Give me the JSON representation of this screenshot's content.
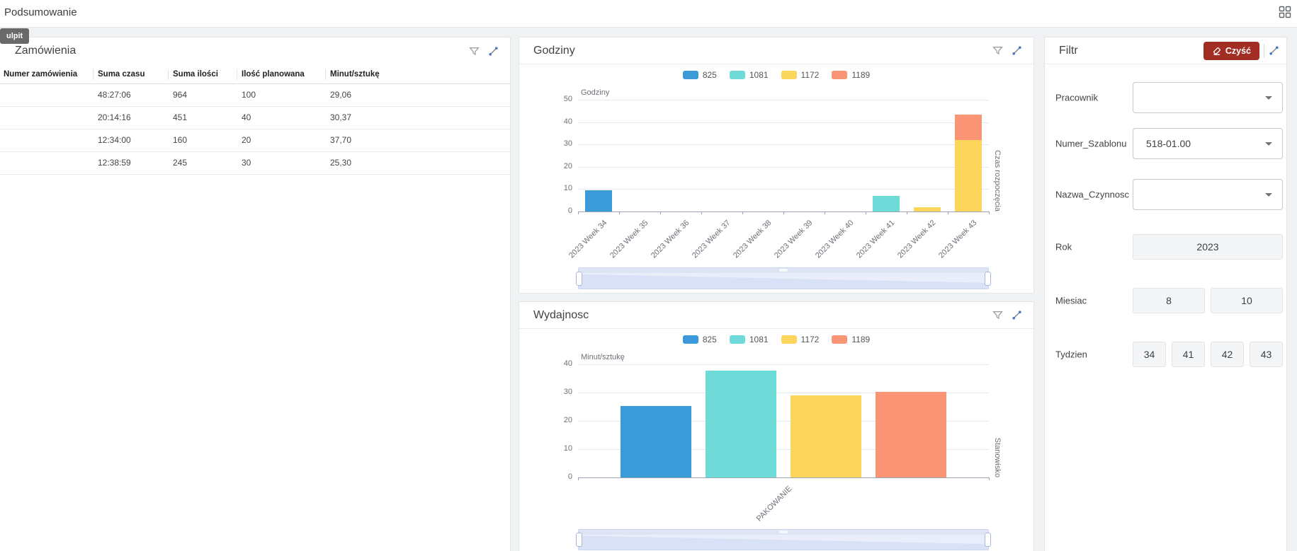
{
  "page": {
    "title": "Podsumowanie",
    "tooltip": "ulpit"
  },
  "colors": {
    "blue": "#3A9BD8",
    "cyan": "#6FDBD9",
    "yellow": "#FBD65B",
    "salmon": "#F99474",
    "clear_button_bg": "#A12D24"
  },
  "orders_panel": {
    "title": "Zamówienia",
    "columns": [
      "Numer zamówienia",
      "Suma czasu",
      "Suma ilości",
      "Ilość planowana",
      "Minut/sztukę"
    ],
    "rows": [
      [
        "",
        "48:27:06",
        "964",
        "100",
        "29,06"
      ],
      [
        "",
        "20:14:16",
        "451",
        "40",
        "30,37"
      ],
      [
        "",
        "12:34:00",
        "160",
        "20",
        "37,70"
      ],
      [
        "",
        "12:38:59",
        "245",
        "30",
        "25,30"
      ]
    ]
  },
  "hours_panel": {
    "title": "Godziny"
  },
  "efficiency_panel": {
    "title": "Wydajnosc"
  },
  "filter_panel": {
    "title": "Filtr",
    "clear_button": "Czyść",
    "fields": [
      {
        "label": "Pracownik",
        "type": "select",
        "value": ""
      },
      {
        "label": "Numer_Szablonu",
        "type": "select",
        "value": "518-01.00"
      },
      {
        "label": "Nazwa_Czynnosc",
        "type": "select",
        "value": ""
      },
      {
        "label": "Rok",
        "type": "chips",
        "values": [
          "2023"
        ]
      },
      {
        "label": "Miesiac",
        "type": "chips",
        "values": [
          "8",
          "10"
        ]
      },
      {
        "label": "Tydzien",
        "type": "chips",
        "values": [
          "34",
          "41",
          "42",
          "43"
        ]
      }
    ]
  },
  "chart_data": [
    {
      "type": "bar",
      "stacked": true,
      "title": "Godziny",
      "ylabel": "Godziny",
      "xlabel": "Czas rozpoczęcia",
      "ylim": [
        0,
        50
      ],
      "yticks": [
        0,
        10,
        20,
        30,
        40,
        50
      ],
      "grid": true,
      "legend_position": "top",
      "categories": [
        "2023 Week 34",
        "2023 Week 35",
        "2023 Week 36",
        "2023 Week 37",
        "2023 Week 38",
        "2023 Week 39",
        "2023 Week 40",
        "2023 Week 41",
        "2023 Week 42",
        "2023 Week 43"
      ],
      "series": [
        {
          "name": "825",
          "color": "#3A9BD8",
          "values": [
            9.5,
            0,
            0,
            0,
            0,
            0,
            0,
            0,
            0,
            0
          ]
        },
        {
          "name": "1081",
          "color": "#6FDBD9",
          "values": [
            0,
            0,
            0,
            0,
            0,
            0,
            0,
            7,
            0,
            0
          ]
        },
        {
          "name": "1172",
          "color": "#FBD65B",
          "values": [
            0,
            0,
            0,
            0,
            0,
            0,
            0,
            0,
            2,
            32
          ]
        },
        {
          "name": "1189",
          "color": "#F99474",
          "values": [
            0,
            0,
            0,
            0,
            0,
            0,
            0,
            0,
            0,
            11.5
          ]
        }
      ]
    },
    {
      "type": "bar",
      "stacked": false,
      "title": "Wydajnosc",
      "ylabel": "Minut/sztukę",
      "xlabel": "Stanowisko",
      "ylim": [
        0,
        40
      ],
      "yticks": [
        0,
        10,
        20,
        30,
        40
      ],
      "grid": true,
      "legend_position": "top",
      "categories": [
        "PAKOWANIE"
      ],
      "series": [
        {
          "name": "825",
          "color": "#3A9BD8",
          "values": [
            25.3
          ]
        },
        {
          "name": "1081",
          "color": "#6FDBD9",
          "values": [
            37.7
          ]
        },
        {
          "name": "1172",
          "color": "#FBD65B",
          "values": [
            29.06
          ]
        },
        {
          "name": "1189",
          "color": "#F99474",
          "values": [
            30.37
          ]
        }
      ]
    }
  ]
}
